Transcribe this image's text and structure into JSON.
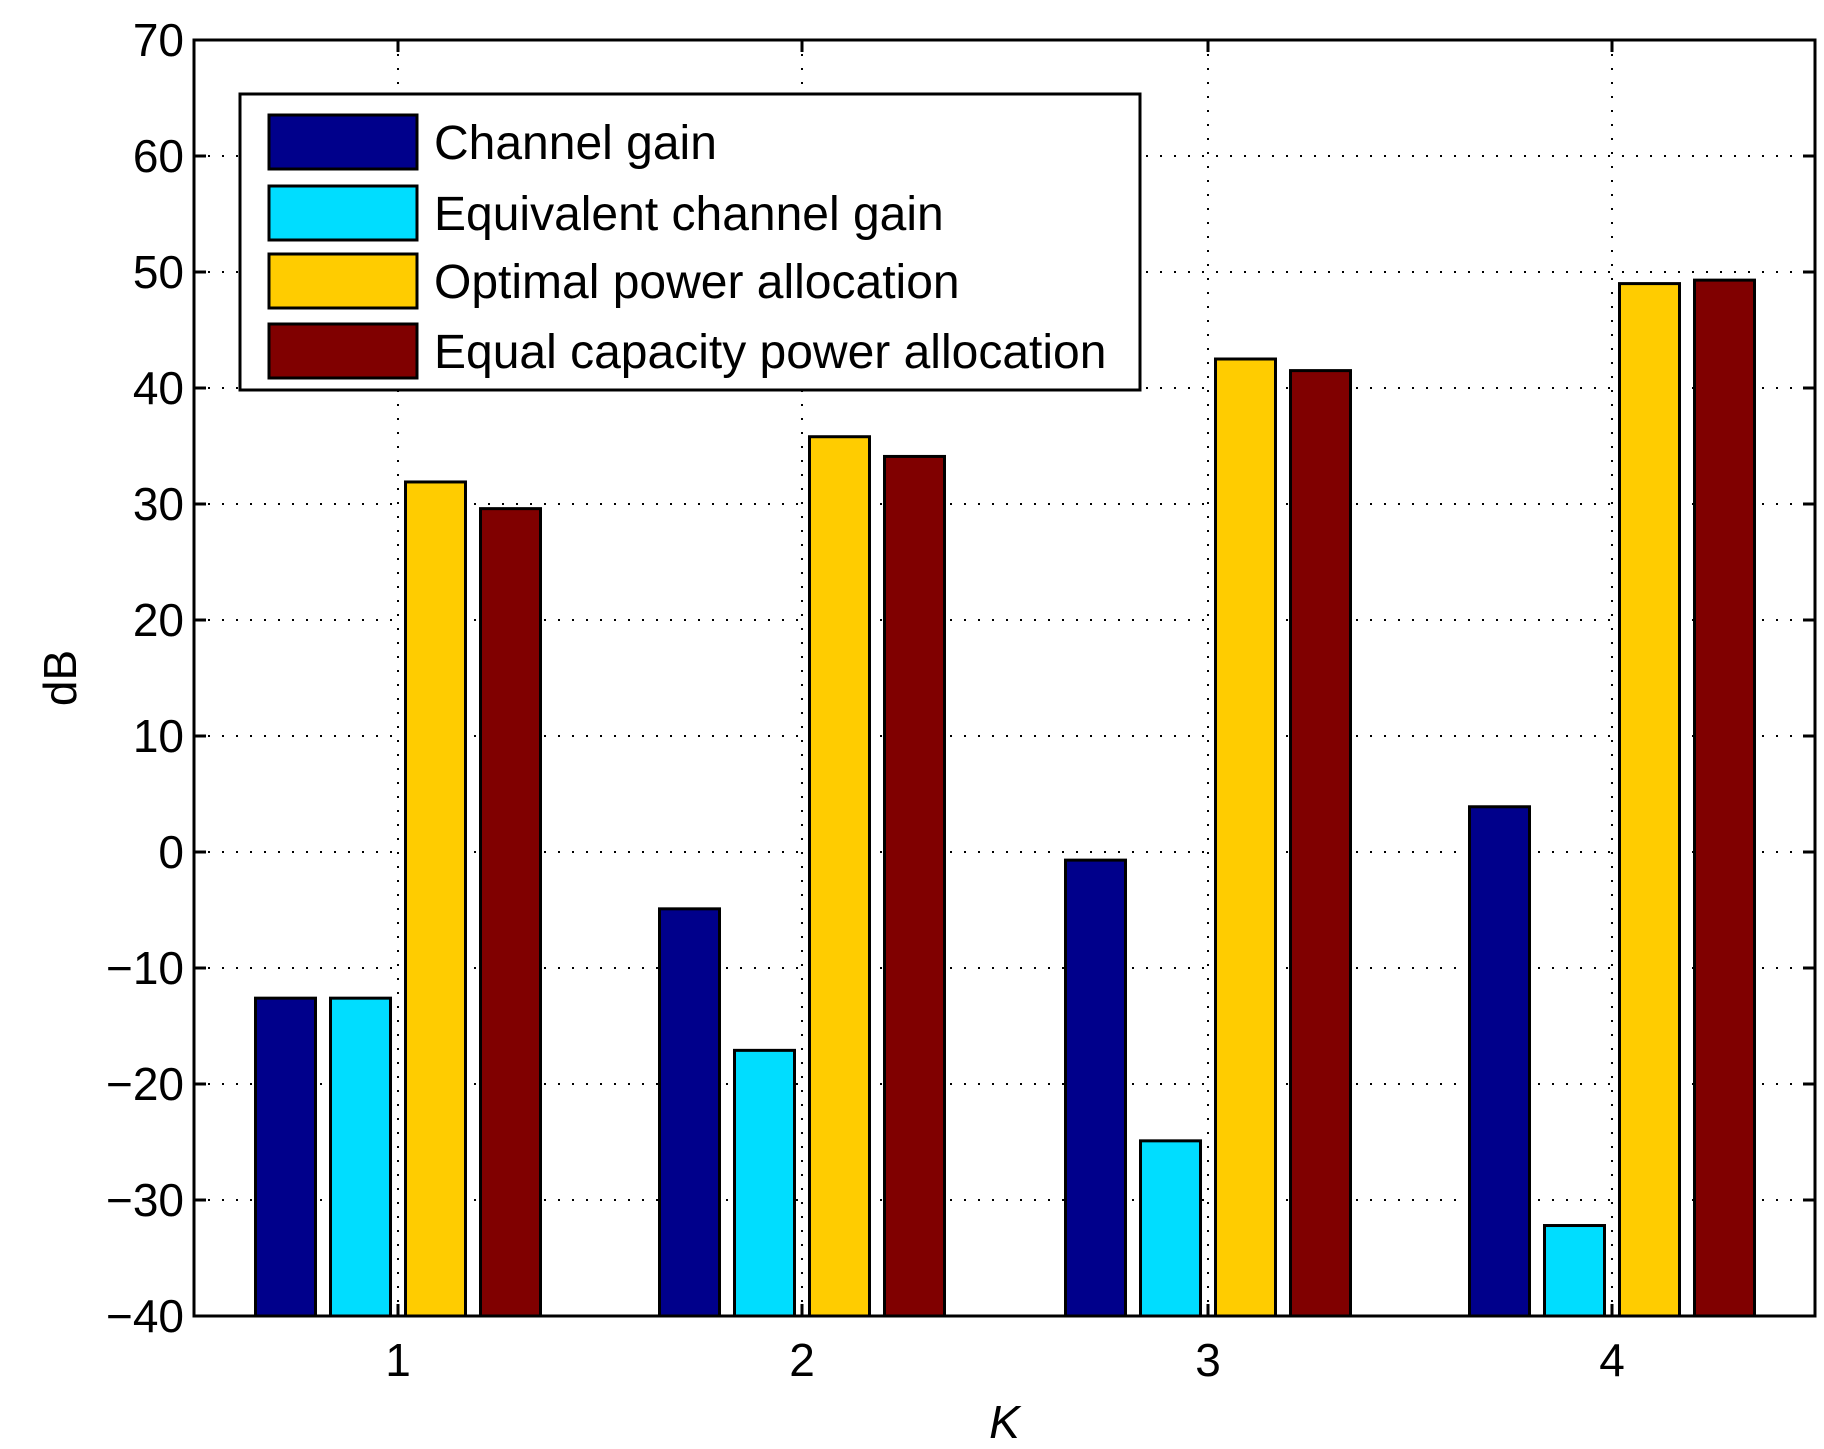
{
  "chart_data": {
    "type": "bar",
    "title": "",
    "xlabel": "K",
    "ylabel": "dB",
    "categories": [
      "1",
      "2",
      "3",
      "4"
    ],
    "ylim": [
      -40,
      70
    ],
    "yticks": [
      70,
      60,
      50,
      40,
      30,
      20,
      10,
      0,
      -10,
      -20,
      -30,
      -40
    ],
    "ytick_labels": [
      "70",
      "60",
      "50",
      "40",
      "30",
      "20",
      "10",
      "0",
      "−10",
      "−20",
      "−30",
      "−40"
    ],
    "grid": true,
    "legend_position": "top-left",
    "series": [
      {
        "name": "Channel gain",
        "color": "#00008B",
        "values": [
          -12.6,
          -4.9,
          -0.7,
          3.9
        ]
      },
      {
        "name": "Equivalent channel gain",
        "color": "#00DDFF",
        "values": [
          -12.6,
          -17.1,
          -24.9,
          -32.2
        ]
      },
      {
        "name": "Optimal power allocation",
        "color": "#FFCC00",
        "values": [
          31.9,
          35.8,
          42.5,
          49.0
        ]
      },
      {
        "name": "Equal capacity power allocation",
        "color": "#800000",
        "values": [
          29.6,
          34.1,
          41.5,
          49.3
        ]
      }
    ]
  }
}
